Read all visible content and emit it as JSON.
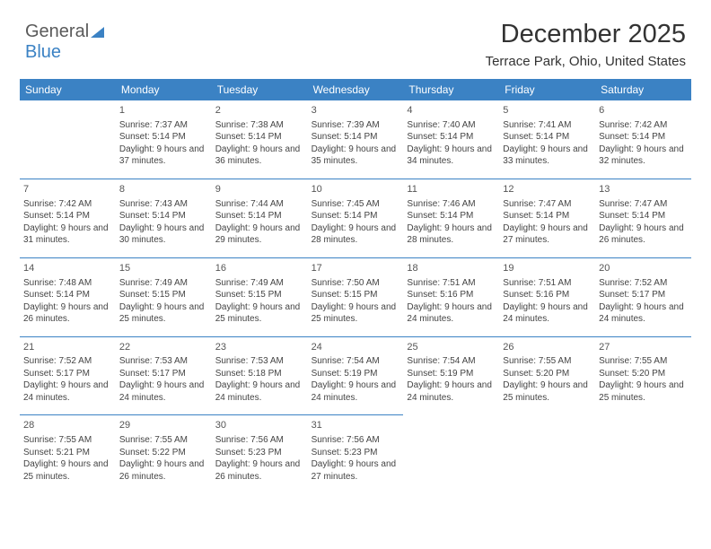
{
  "logo": {
    "text1": "General",
    "text2": "Blue"
  },
  "title": "December 2025",
  "subtitle": "Terrace Park, Ohio, United States",
  "colors": {
    "header_bg": "#3b82c4",
    "header_fg": "#ffffff",
    "border": "#3b82c4",
    "text": "#444444",
    "title_color": "#333333"
  },
  "day_names": [
    "Sunday",
    "Monday",
    "Tuesday",
    "Wednesday",
    "Thursday",
    "Friday",
    "Saturday"
  ],
  "first_weekday_index": 1,
  "days": [
    {
      "n": 1,
      "sunrise": "7:37 AM",
      "sunset": "5:14 PM",
      "daylight": "9 hours and 37 minutes."
    },
    {
      "n": 2,
      "sunrise": "7:38 AM",
      "sunset": "5:14 PM",
      "daylight": "9 hours and 36 minutes."
    },
    {
      "n": 3,
      "sunrise": "7:39 AM",
      "sunset": "5:14 PM",
      "daylight": "9 hours and 35 minutes."
    },
    {
      "n": 4,
      "sunrise": "7:40 AM",
      "sunset": "5:14 PM",
      "daylight": "9 hours and 34 minutes."
    },
    {
      "n": 5,
      "sunrise": "7:41 AM",
      "sunset": "5:14 PM",
      "daylight": "9 hours and 33 minutes."
    },
    {
      "n": 6,
      "sunrise": "7:42 AM",
      "sunset": "5:14 PM",
      "daylight": "9 hours and 32 minutes."
    },
    {
      "n": 7,
      "sunrise": "7:42 AM",
      "sunset": "5:14 PM",
      "daylight": "9 hours and 31 minutes."
    },
    {
      "n": 8,
      "sunrise": "7:43 AM",
      "sunset": "5:14 PM",
      "daylight": "9 hours and 30 minutes."
    },
    {
      "n": 9,
      "sunrise": "7:44 AM",
      "sunset": "5:14 PM",
      "daylight": "9 hours and 29 minutes."
    },
    {
      "n": 10,
      "sunrise": "7:45 AM",
      "sunset": "5:14 PM",
      "daylight": "9 hours and 28 minutes."
    },
    {
      "n": 11,
      "sunrise": "7:46 AM",
      "sunset": "5:14 PM",
      "daylight": "9 hours and 28 minutes."
    },
    {
      "n": 12,
      "sunrise": "7:47 AM",
      "sunset": "5:14 PM",
      "daylight": "9 hours and 27 minutes."
    },
    {
      "n": 13,
      "sunrise": "7:47 AM",
      "sunset": "5:14 PM",
      "daylight": "9 hours and 26 minutes."
    },
    {
      "n": 14,
      "sunrise": "7:48 AM",
      "sunset": "5:14 PM",
      "daylight": "9 hours and 26 minutes."
    },
    {
      "n": 15,
      "sunrise": "7:49 AM",
      "sunset": "5:15 PM",
      "daylight": "9 hours and 25 minutes."
    },
    {
      "n": 16,
      "sunrise": "7:49 AM",
      "sunset": "5:15 PM",
      "daylight": "9 hours and 25 minutes."
    },
    {
      "n": 17,
      "sunrise": "7:50 AM",
      "sunset": "5:15 PM",
      "daylight": "9 hours and 25 minutes."
    },
    {
      "n": 18,
      "sunrise": "7:51 AM",
      "sunset": "5:16 PM",
      "daylight": "9 hours and 24 minutes."
    },
    {
      "n": 19,
      "sunrise": "7:51 AM",
      "sunset": "5:16 PM",
      "daylight": "9 hours and 24 minutes."
    },
    {
      "n": 20,
      "sunrise": "7:52 AM",
      "sunset": "5:17 PM",
      "daylight": "9 hours and 24 minutes."
    },
    {
      "n": 21,
      "sunrise": "7:52 AM",
      "sunset": "5:17 PM",
      "daylight": "9 hours and 24 minutes."
    },
    {
      "n": 22,
      "sunrise": "7:53 AM",
      "sunset": "5:17 PM",
      "daylight": "9 hours and 24 minutes."
    },
    {
      "n": 23,
      "sunrise": "7:53 AM",
      "sunset": "5:18 PM",
      "daylight": "9 hours and 24 minutes."
    },
    {
      "n": 24,
      "sunrise": "7:54 AM",
      "sunset": "5:19 PM",
      "daylight": "9 hours and 24 minutes."
    },
    {
      "n": 25,
      "sunrise": "7:54 AM",
      "sunset": "5:19 PM",
      "daylight": "9 hours and 24 minutes."
    },
    {
      "n": 26,
      "sunrise": "7:55 AM",
      "sunset": "5:20 PM",
      "daylight": "9 hours and 25 minutes."
    },
    {
      "n": 27,
      "sunrise": "7:55 AM",
      "sunset": "5:20 PM",
      "daylight": "9 hours and 25 minutes."
    },
    {
      "n": 28,
      "sunrise": "7:55 AM",
      "sunset": "5:21 PM",
      "daylight": "9 hours and 25 minutes."
    },
    {
      "n": 29,
      "sunrise": "7:55 AM",
      "sunset": "5:22 PM",
      "daylight": "9 hours and 26 minutes."
    },
    {
      "n": 30,
      "sunrise": "7:56 AM",
      "sunset": "5:23 PM",
      "daylight": "9 hours and 26 minutes."
    },
    {
      "n": 31,
      "sunrise": "7:56 AM",
      "sunset": "5:23 PM",
      "daylight": "9 hours and 27 minutes."
    }
  ],
  "labels": {
    "sunrise": "Sunrise:",
    "sunset": "Sunset:",
    "daylight": "Daylight:"
  }
}
